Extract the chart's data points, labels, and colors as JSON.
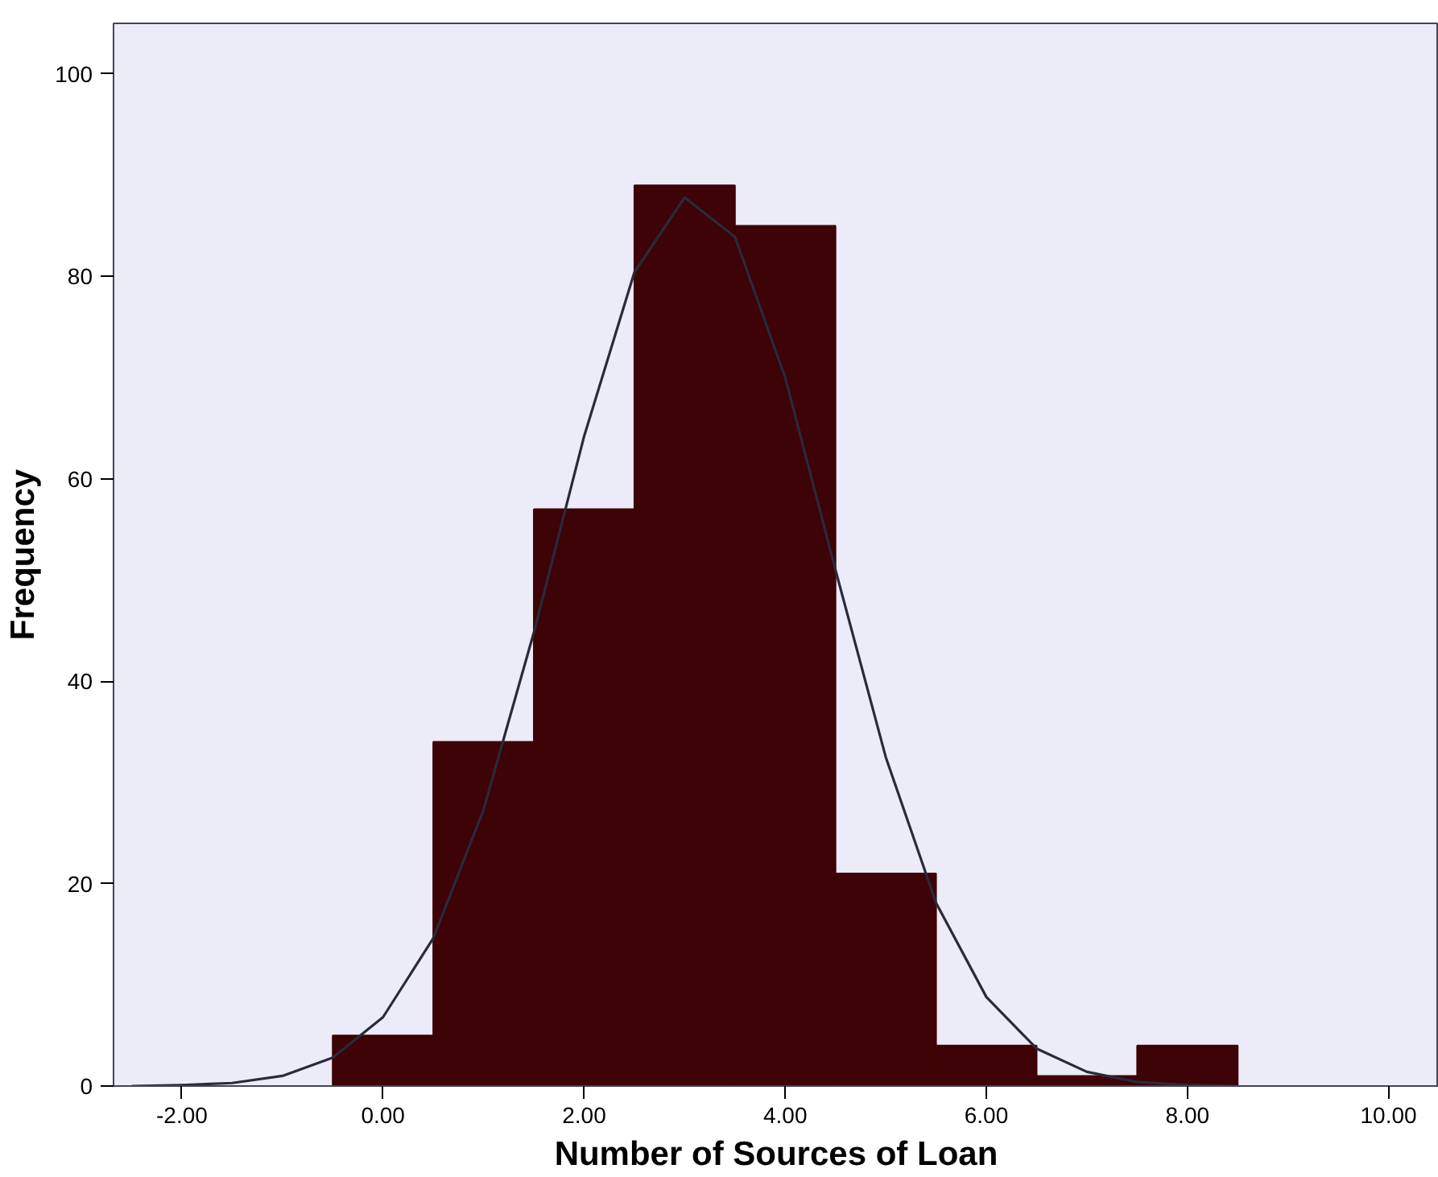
{
  "chart_data": {
    "type": "histogram",
    "xlabel": "Number of Sources of Loan",
    "ylabel": "Frequency",
    "bins": [
      -0.5,
      0.5,
      1.5,
      2.5,
      3.5,
      4.5,
      5.5,
      6.5,
      7.5,
      8.5
    ],
    "series": [
      {
        "color": "#3d0306",
        "values": [
          5,
          34,
          57,
          89,
          85,
          21,
          4,
          1,
          4
        ]
      },
      {
        "type": "line",
        "color": "#2a2a3a",
        "x": [
          -2.5,
          -2,
          -1.5,
          -1,
          -0.5,
          0,
          0.5,
          1,
          1.5,
          2,
          2.5,
          3,
          3.5,
          4,
          4.5,
          5,
          5.5,
          6,
          6.5,
          7,
          7.5,
          8,
          8.5
        ],
        "values": [
          0,
          0.1,
          0.3,
          1.0,
          2.8,
          6.8,
          14.6,
          27.3,
          44.8,
          64.2,
          80.4,
          87.8,
          83.9,
          70.0,
          51.0,
          32.5,
          18.1,
          8.8,
          3.7,
          1.4,
          0.4,
          0.1,
          0
        ]
      }
    ],
    "xlim": [
      -2.68,
      10.5
    ],
    "ylim": [
      0,
      105
    ],
    "xticks": [
      {
        "value": -2,
        "label": "-2.00"
      },
      {
        "value": 0,
        "label": "0.00"
      },
      {
        "value": 2,
        "label": "2.00"
      },
      {
        "value": 4,
        "label": "4.00"
      },
      {
        "value": 6,
        "label": "6.00"
      },
      {
        "value": 8,
        "label": "8.00"
      },
      {
        "value": 10,
        "label": "10.00"
      }
    ],
    "yticks": [
      0,
      20,
      40,
      60,
      80,
      100
    ],
    "grid": false,
    "marker": "none",
    "line_style": "solid"
  }
}
